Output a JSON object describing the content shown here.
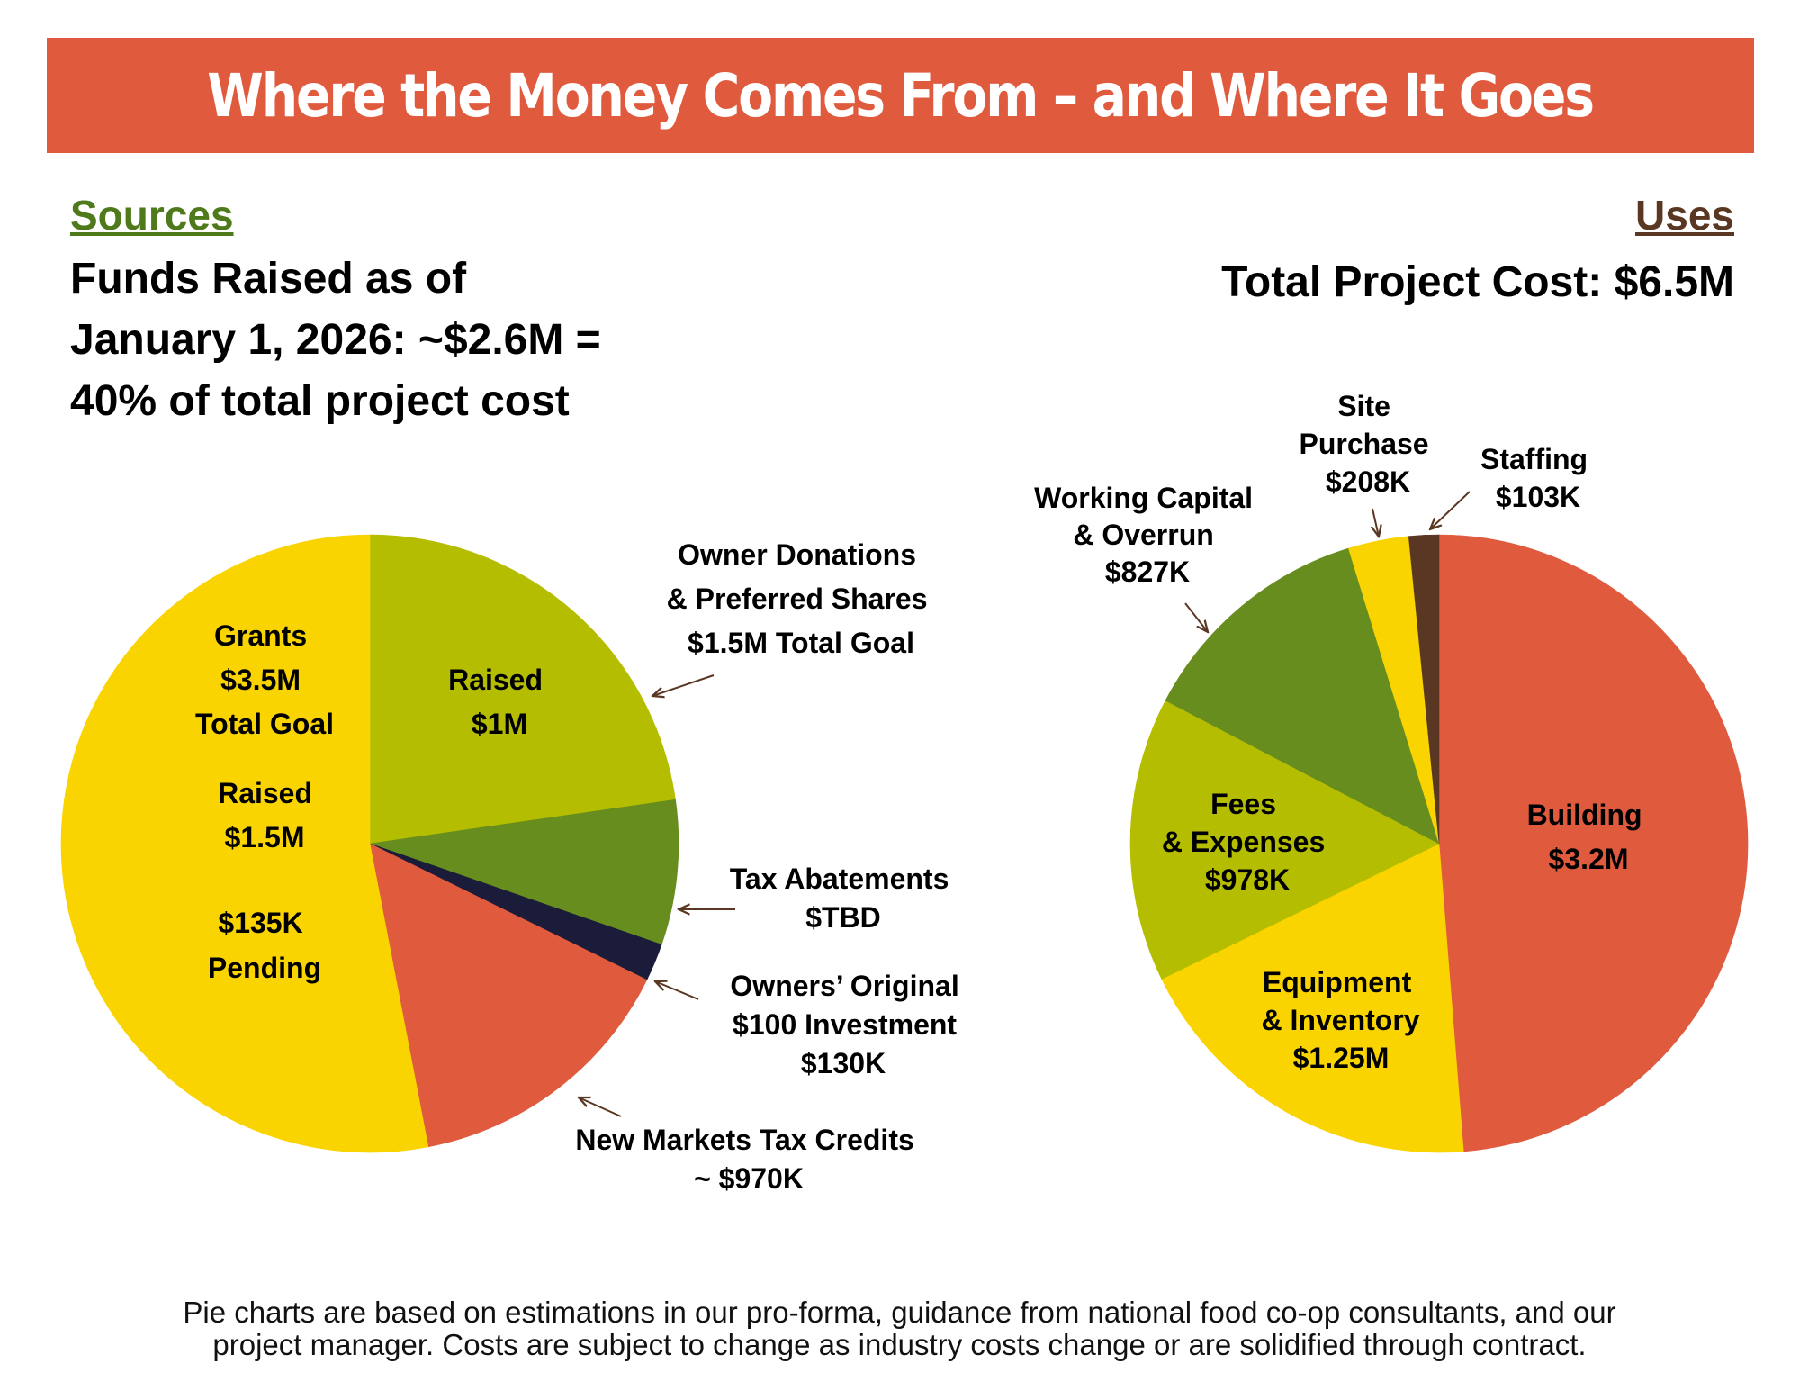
{
  "title": "Where the Money Comes From – and Where It Goes",
  "sources": {
    "heading": "Sources",
    "summary_lines": [
      "Funds Raised as of",
      "January 1, 2026: ~$2.6M =",
      "40% of total project cost"
    ]
  },
  "uses": {
    "heading": "Uses",
    "total": "Total Project Cost: $6.5M"
  },
  "footnote_lines": [
    "Pie charts are based on estimations in our pro-forma, guidance from national food co-op consultants, and our",
    "project manager. Costs are subject to change as industry costs change or are solidified through contract."
  ],
  "colors": {
    "banner": "#E05A3E",
    "yellow": "#FAD400",
    "olive": "#B5BD00",
    "green": "#668D1E",
    "navy": "#1B1B3A",
    "red": "#E05A3E",
    "brown": "#5A3722",
    "sources_heading": "#4F7A1C"
  },
  "chart_data": [
    {
      "type": "pie",
      "name": "Sources",
      "units": "USD millions",
      "start": "12 o'clock, clockwise",
      "slices": [
        {
          "label": "Owner Donations & Preferred Shares – Raised",
          "value": 1.0,
          "color": "#B5BD00"
        },
        {
          "label": "Owner Donations & Preferred Shares – Remaining",
          "value": 0.5,
          "color": "#B5BD00"
        },
        {
          "label": "Tax Abatements",
          "value": 0.5,
          "color": "#668D1E"
        },
        {
          "label": "Owners' Original $100 Investment",
          "value": 0.13,
          "color": "#1B1B3A"
        },
        {
          "label": "New Markets Tax Credits",
          "value": 0.97,
          "color": "#E05A3E"
        },
        {
          "label": "Grants – Remaining",
          "value": 1.865,
          "color": "#FAD400"
        },
        {
          "label": "Grants – Pending",
          "value": 0.135,
          "color": "#FAD400"
        },
        {
          "label": "Grants – Raised",
          "value": 1.5,
          "color": "#FAD400"
        }
      ],
      "labels": {
        "grants": [
          "Grants",
          "$3.5M",
          "Total Goal"
        ],
        "grants_raised": [
          "Raised",
          "$1.5M"
        ],
        "grants_pending": [
          "$135K",
          "Pending"
        ],
        "owner_raised": [
          "Raised",
          "$1M"
        ],
        "owner_donations": [
          "Owner Donations",
          "& Preferred Shares",
          "$1.5M Total Goal"
        ],
        "tax_abatements": [
          "Tax Abatements",
          "$TBD"
        ],
        "owners_original": [
          "Owners’ Original",
          "$100 Investment",
          "$130K"
        ],
        "nmtc": [
          "New Markets Tax Credits",
          "~ $970K"
        ]
      }
    },
    {
      "type": "pie",
      "name": "Uses",
      "units": "USD thousands",
      "start": "12 o'clock, clockwise",
      "slices": [
        {
          "label": "Building",
          "value": 3200,
          "color": "#E05A3E"
        },
        {
          "label": "Equipment & Inventory",
          "value": 1250,
          "color": "#FAD400"
        },
        {
          "label": "Fees & Expenses",
          "value": 978,
          "color": "#B5BD00"
        },
        {
          "label": "Working Capital & Overrun",
          "value": 827,
          "color": "#668D1E"
        },
        {
          "label": "Site Purchase",
          "value": 208,
          "color": "#FAD400"
        },
        {
          "label": "Staffing",
          "value": 103,
          "color": "#5A3722"
        }
      ],
      "labels": {
        "building": [
          "Building",
          "$3.2M"
        ],
        "equipment": [
          "Equipment",
          "& Inventory",
          "$1.25M"
        ],
        "fees": [
          "Fees",
          "& Expenses",
          "$978K"
        ],
        "working_capital": [
          "Working Capital",
          "& Overrun",
          "$827K"
        ],
        "site_purchase": [
          "Site",
          "Purchase",
          "$208K"
        ],
        "staffing": [
          "Staffing",
          "$103K"
        ]
      }
    }
  ]
}
